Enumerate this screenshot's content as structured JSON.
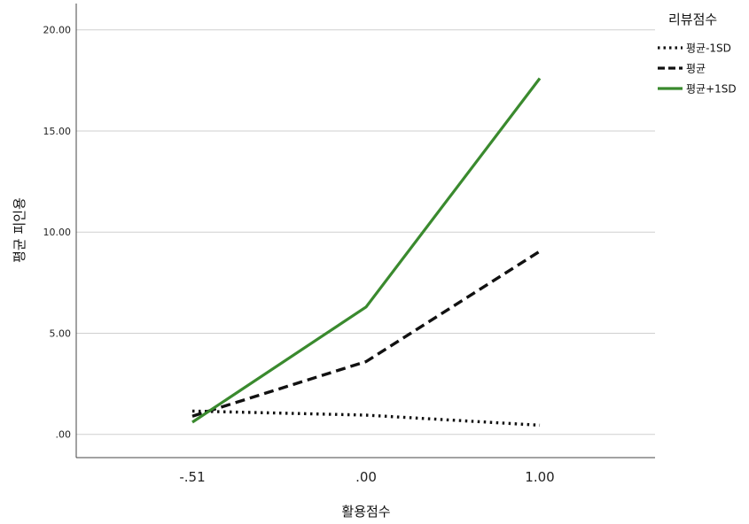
{
  "chart_data": {
    "type": "line",
    "xlabel": "활용점수",
    "ylabel": "평균 피인용",
    "categories": [
      "-.51",
      ".00",
      "1.00"
    ],
    "y_ticks": [
      ".00",
      "5.00",
      "10.00",
      "15.00",
      "20.00"
    ],
    "ylim": [
      -1.15,
      21.3
    ],
    "grid": "horizontal",
    "legend": {
      "title": "리뷰점수",
      "position": "top-right",
      "entries": [
        "평균-1SD",
        "평균",
        "평균+1SD"
      ]
    },
    "series": [
      {
        "name": "평균-1SD",
        "values": [
          1.15,
          0.95,
          0.45
        ],
        "color": "#111111",
        "style": "dotted"
      },
      {
        "name": "평균",
        "values": [
          0.9,
          3.6,
          9.05
        ],
        "color": "#111111",
        "style": "dashed"
      },
      {
        "name": "평균+1SD",
        "values": [
          0.6,
          6.3,
          17.6
        ],
        "color": "#3a8a2e",
        "style": "solid"
      }
    ]
  }
}
